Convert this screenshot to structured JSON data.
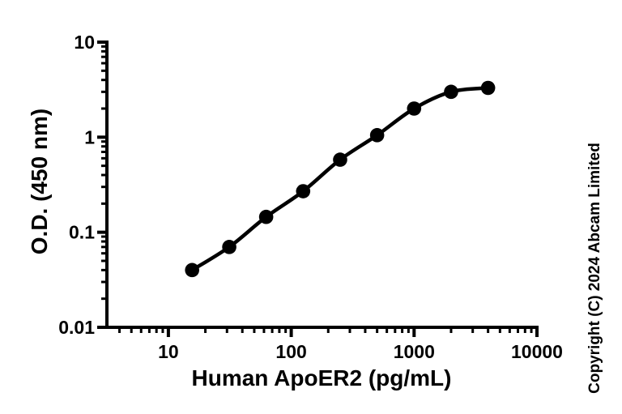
{
  "page": {
    "background_color": "#ffffff",
    "ink_color": "#000000"
  },
  "copyright": "Copyright (C) 2024 Abcam Limited",
  "chart_data": {
    "type": "scatter",
    "subtype": "line-through-points (4PL standard curve)",
    "title": "",
    "xlabel": "Human ApoER2 (pg/mL)",
    "ylabel": "O.D. (450 nm)",
    "x_scale": "log10",
    "y_scale": "log10",
    "xlim": [
      3.16,
      10000
    ],
    "ylim": [
      0.01,
      10
    ],
    "grid": false,
    "legend": false,
    "marker": "filled-circle",
    "marker_color": "#000000",
    "line_color": "#000000",
    "x": [
      15.6,
      31.3,
      62.5,
      125,
      250,
      500,
      1000,
      2000,
      4000
    ],
    "y": [
      0.04,
      0.07,
      0.145,
      0.27,
      0.58,
      1.05,
      2.0,
      3.0,
      3.3
    ],
    "x_ticks": [
      10,
      100,
      1000,
      10000
    ],
    "x_tick_labels": [
      "10",
      "100",
      "1000",
      "10000"
    ],
    "y_ticks": [
      10,
      1,
      0.1,
      0.01
    ],
    "y_tick_labels": [
      "10",
      "1",
      "0.1",
      "0.01"
    ],
    "minor_ticks": "log decades (2-9) on both axes, pointing outward"
  }
}
